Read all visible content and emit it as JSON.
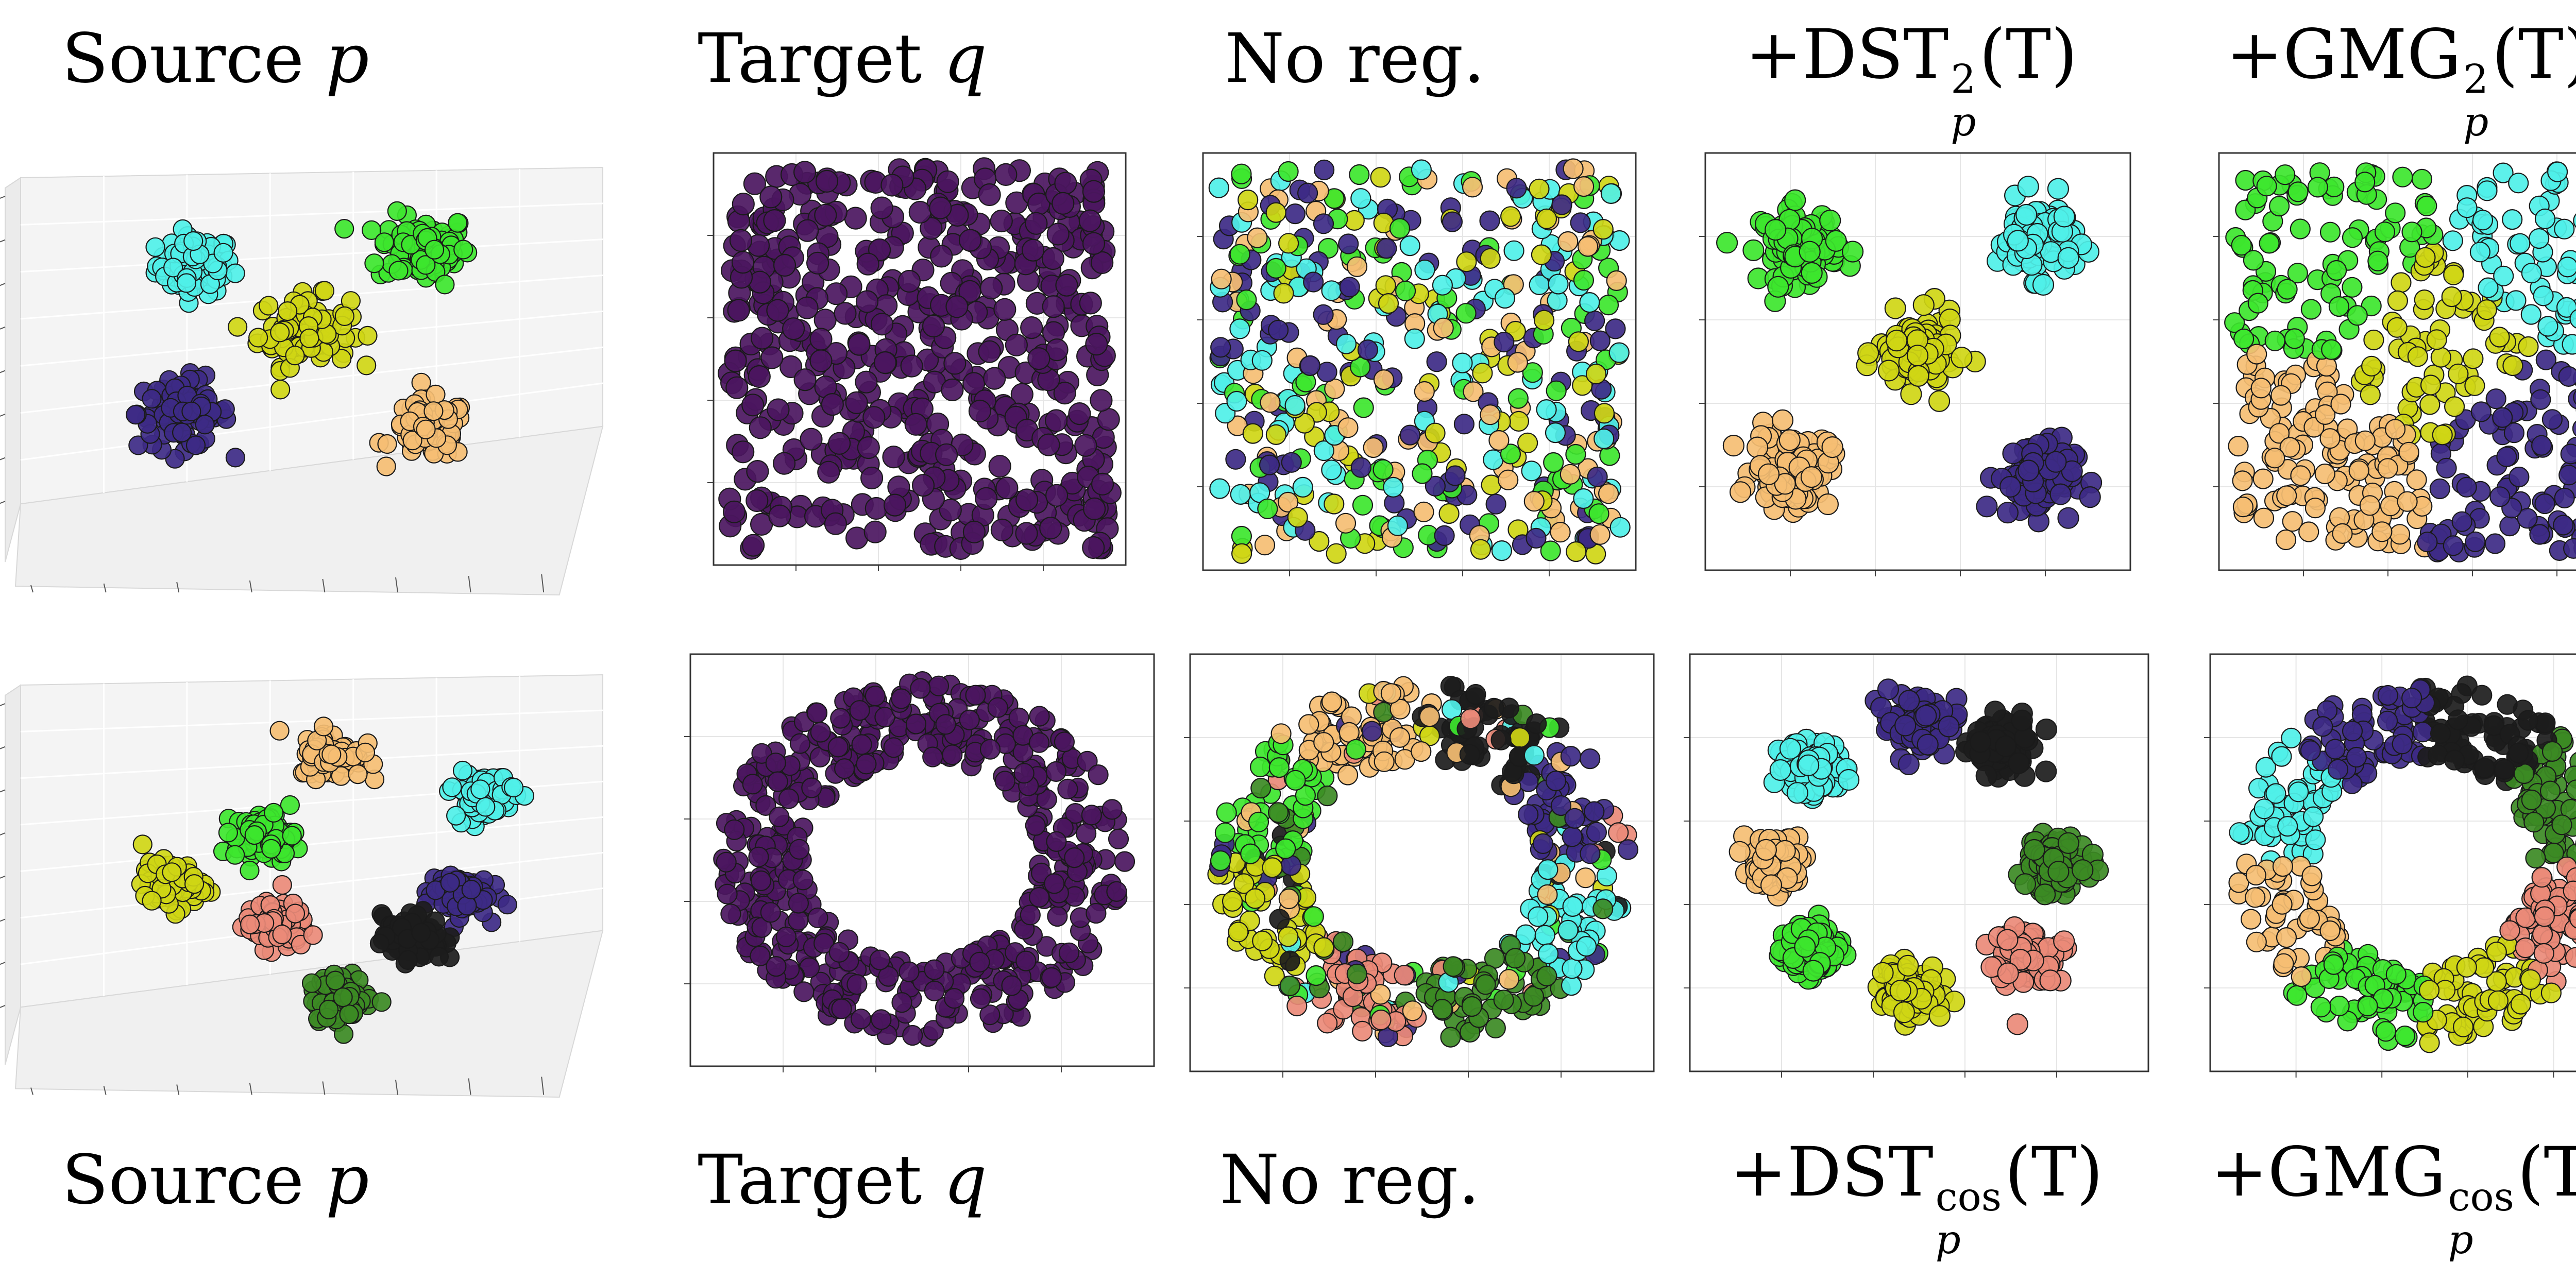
{
  "figure": {
    "rows": [
      {
        "top_titles": true,
        "titles": {
          "source_word": "Source",
          "source_var": "p",
          "target_word": "Target",
          "target_var": "q",
          "noreg": "No reg.",
          "m4_prefix": "+DST",
          "m4_sup": "2",
          "m4_sub": "p",
          "m4_arg": "(T)",
          "m5_prefix": "+GMG",
          "m5_sup": "2",
          "m5_sub": "p",
          "m5_arg": "(T)"
        }
      },
      {
        "top_titles": false,
        "titles": {
          "source_word": "Source",
          "source_var": "p",
          "target_word": "Target",
          "target_var": "q",
          "noreg": "No reg.",
          "m4_prefix": "+DST",
          "m4_sup": "cos",
          "m4_sub": "p",
          "m4_arg": "(T)",
          "m5_prefix": "+GMG",
          "m5_sup": "cos",
          "m5_sub": "p",
          "m5_arg": "(T)"
        }
      }
    ]
  },
  "colors": {
    "indigo": "#3d2a85",
    "cyan": "#4ff0e8",
    "green": "#3de62e",
    "yellow": "#cfd615",
    "orange": "#f5be73",
    "salmon": "#ea8a78",
    "black": "#1c1c1c",
    "darkgreen": "#3c8a24",
    "target": "#4b1660"
  },
  "chart_data": [
    {
      "type": "scatter",
      "panel": "row1-source-3d",
      "clusters": [
        {
          "color": "cyan",
          "center": [
            0.3,
            0.78
          ],
          "spread": 0.05
        },
        {
          "color": "green",
          "center": [
            0.72,
            0.82
          ],
          "spread": 0.06
        },
        {
          "color": "yellow",
          "center": [
            0.5,
            0.62
          ],
          "spread": 0.06
        },
        {
          "color": "indigo",
          "center": [
            0.28,
            0.42
          ],
          "spread": 0.06
        },
        {
          "color": "orange",
          "center": [
            0.73,
            0.38
          ],
          "spread": 0.05
        }
      ]
    },
    {
      "type": "scatter",
      "panel": "row1-target",
      "distribution": "uniform-square",
      "color": "target"
    },
    {
      "type": "scatter",
      "panel": "row1-noreg",
      "distribution": "uniform-mixed",
      "colors": [
        "indigo",
        "cyan",
        "green",
        "yellow",
        "orange"
      ]
    },
    {
      "type": "scatter",
      "panel": "row1-dst",
      "clusters": [
        {
          "color": "green",
          "center": [
            0.2,
            0.8
          ],
          "spread": 0.07
        },
        {
          "color": "cyan",
          "center": [
            0.8,
            0.82
          ],
          "spread": 0.07
        },
        {
          "color": "yellow",
          "center": [
            0.5,
            0.52
          ],
          "spread": 0.07
        },
        {
          "color": "orange",
          "center": [
            0.18,
            0.22
          ],
          "spread": 0.07
        },
        {
          "color": "indigo",
          "center": [
            0.8,
            0.2
          ],
          "spread": 0.07
        }
      ]
    },
    {
      "type": "scatter",
      "panel": "row1-gmg",
      "distribution": "uniform-regions",
      "regions": [
        {
          "color": "green",
          "center": [
            0.25,
            0.78
          ]
        },
        {
          "color": "cyan",
          "center": [
            0.8,
            0.82
          ]
        },
        {
          "color": "yellow",
          "center": [
            0.5,
            0.55
          ]
        },
        {
          "color": "orange",
          "center": [
            0.2,
            0.25
          ]
        },
        {
          "color": "indigo",
          "center": [
            0.78,
            0.25
          ]
        }
      ]
    },
    {
      "type": "scatter",
      "panel": "row2-source-3d",
      "clusters": [
        {
          "color": "orange",
          "center": [
            0.55,
            0.82
          ],
          "spread": 0.04
        },
        {
          "color": "cyan",
          "center": [
            0.83,
            0.72
          ],
          "spread": 0.04
        },
        {
          "color": "green",
          "center": [
            0.43,
            0.62
          ],
          "spread": 0.04
        },
        {
          "color": "yellow",
          "center": [
            0.26,
            0.5
          ],
          "spread": 0.04
        },
        {
          "color": "indigo",
          "center": [
            0.78,
            0.48
          ],
          "spread": 0.04
        },
        {
          "color": "salmon",
          "center": [
            0.45,
            0.4
          ],
          "spread": 0.04
        },
        {
          "color": "black",
          "center": [
            0.7,
            0.37
          ],
          "spread": 0.04
        },
        {
          "color": "darkgreen",
          "center": [
            0.57,
            0.22
          ],
          "spread": 0.04
        }
      ]
    },
    {
      "type": "scatter",
      "panel": "row2-target",
      "distribution": "annulus",
      "color": "target"
    },
    {
      "type": "scatter",
      "panel": "row2-noreg",
      "distribution": "annulus-mixed",
      "colors": [
        "black",
        "indigo",
        "cyan",
        "darkgreen",
        "salmon",
        "yellow",
        "green",
        "orange"
      ]
    },
    {
      "type": "scatter",
      "panel": "row2-dst",
      "clusters": [
        {
          "color": "indigo",
          "center": [
            0.5,
            0.85
          ],
          "spread": 0.05
        },
        {
          "color": "black",
          "center": [
            0.7,
            0.8
          ],
          "spread": 0.05
        },
        {
          "color": "cyan",
          "center": [
            0.25,
            0.74
          ],
          "spread": 0.05
        },
        {
          "color": "orange",
          "center": [
            0.17,
            0.5
          ],
          "spread": 0.05
        },
        {
          "color": "darkgreen",
          "center": [
            0.82,
            0.5
          ],
          "spread": 0.05
        },
        {
          "color": "green",
          "center": [
            0.25,
            0.27
          ],
          "spread": 0.05
        },
        {
          "color": "yellow",
          "center": [
            0.48,
            0.17
          ],
          "spread": 0.05
        },
        {
          "color": "salmon",
          "center": [
            0.75,
            0.25
          ],
          "spread": 0.05
        }
      ]
    },
    {
      "type": "scatter",
      "panel": "row2-gmg",
      "distribution": "annulus-sectors",
      "sectors": [
        "black",
        "darkgreen",
        "salmon",
        "yellow",
        "green",
        "orange",
        "cyan",
        "indigo"
      ]
    }
  ]
}
